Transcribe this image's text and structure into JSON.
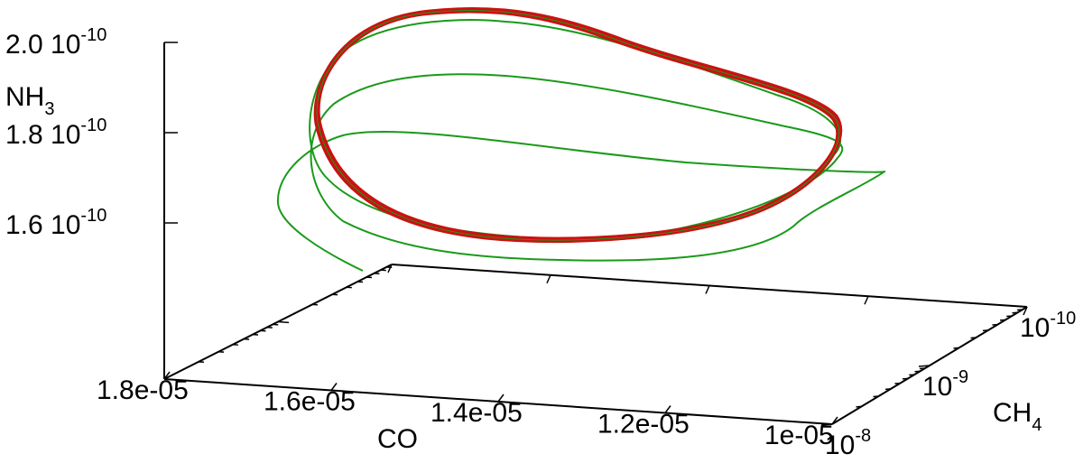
{
  "chart_data": {
    "type": "line",
    "dimensions": "3d",
    "axes": {
      "x": {
        "label": "CO",
        "range": [
          1e-05,
          1.8e-05
        ],
        "scale": "linear",
        "ticks": [
          {
            "value": 1.8e-05,
            "label": "1.8e-05"
          },
          {
            "value": 1.6e-05,
            "label": "1.6e-05"
          },
          {
            "value": 1.4e-05,
            "label": "1.4e-05"
          },
          {
            "value": 1.2e-05,
            "label": "1.2e-05"
          },
          {
            "value": 1e-05,
            "label": "1e-05"
          }
        ]
      },
      "y": {
        "label_base": "CH",
        "label_sub": "4",
        "range": [
          1e-08,
          1e-10
        ],
        "scale": "log",
        "ticks": [
          {
            "value": 1e-08,
            "base": "10",
            "exp": "-8"
          },
          {
            "value": 1e-09,
            "base": "10",
            "exp": "-9"
          },
          {
            "value": 1e-10,
            "base": "10",
            "exp": "-10"
          }
        ]
      },
      "z": {
        "label_base": "NH",
        "label_sub": "3",
        "range": [
          1.4e-10,
          2e-10
        ],
        "scale": "linear",
        "ticks": [
          {
            "value": 2e-10,
            "mantissa": "2.0 10",
            "exp": "-10"
          },
          {
            "value": 1.8e-10,
            "mantissa": "1.8 10",
            "exp": "-10"
          },
          {
            "value": 1.6e-10,
            "mantissa": "1.6 10",
            "exp": "-10"
          }
        ]
      }
    },
    "series": [
      {
        "role": "transient",
        "color": "#1a9a1a"
      },
      {
        "role": "limit-cycle",
        "color": "#cc1111"
      }
    ]
  }
}
